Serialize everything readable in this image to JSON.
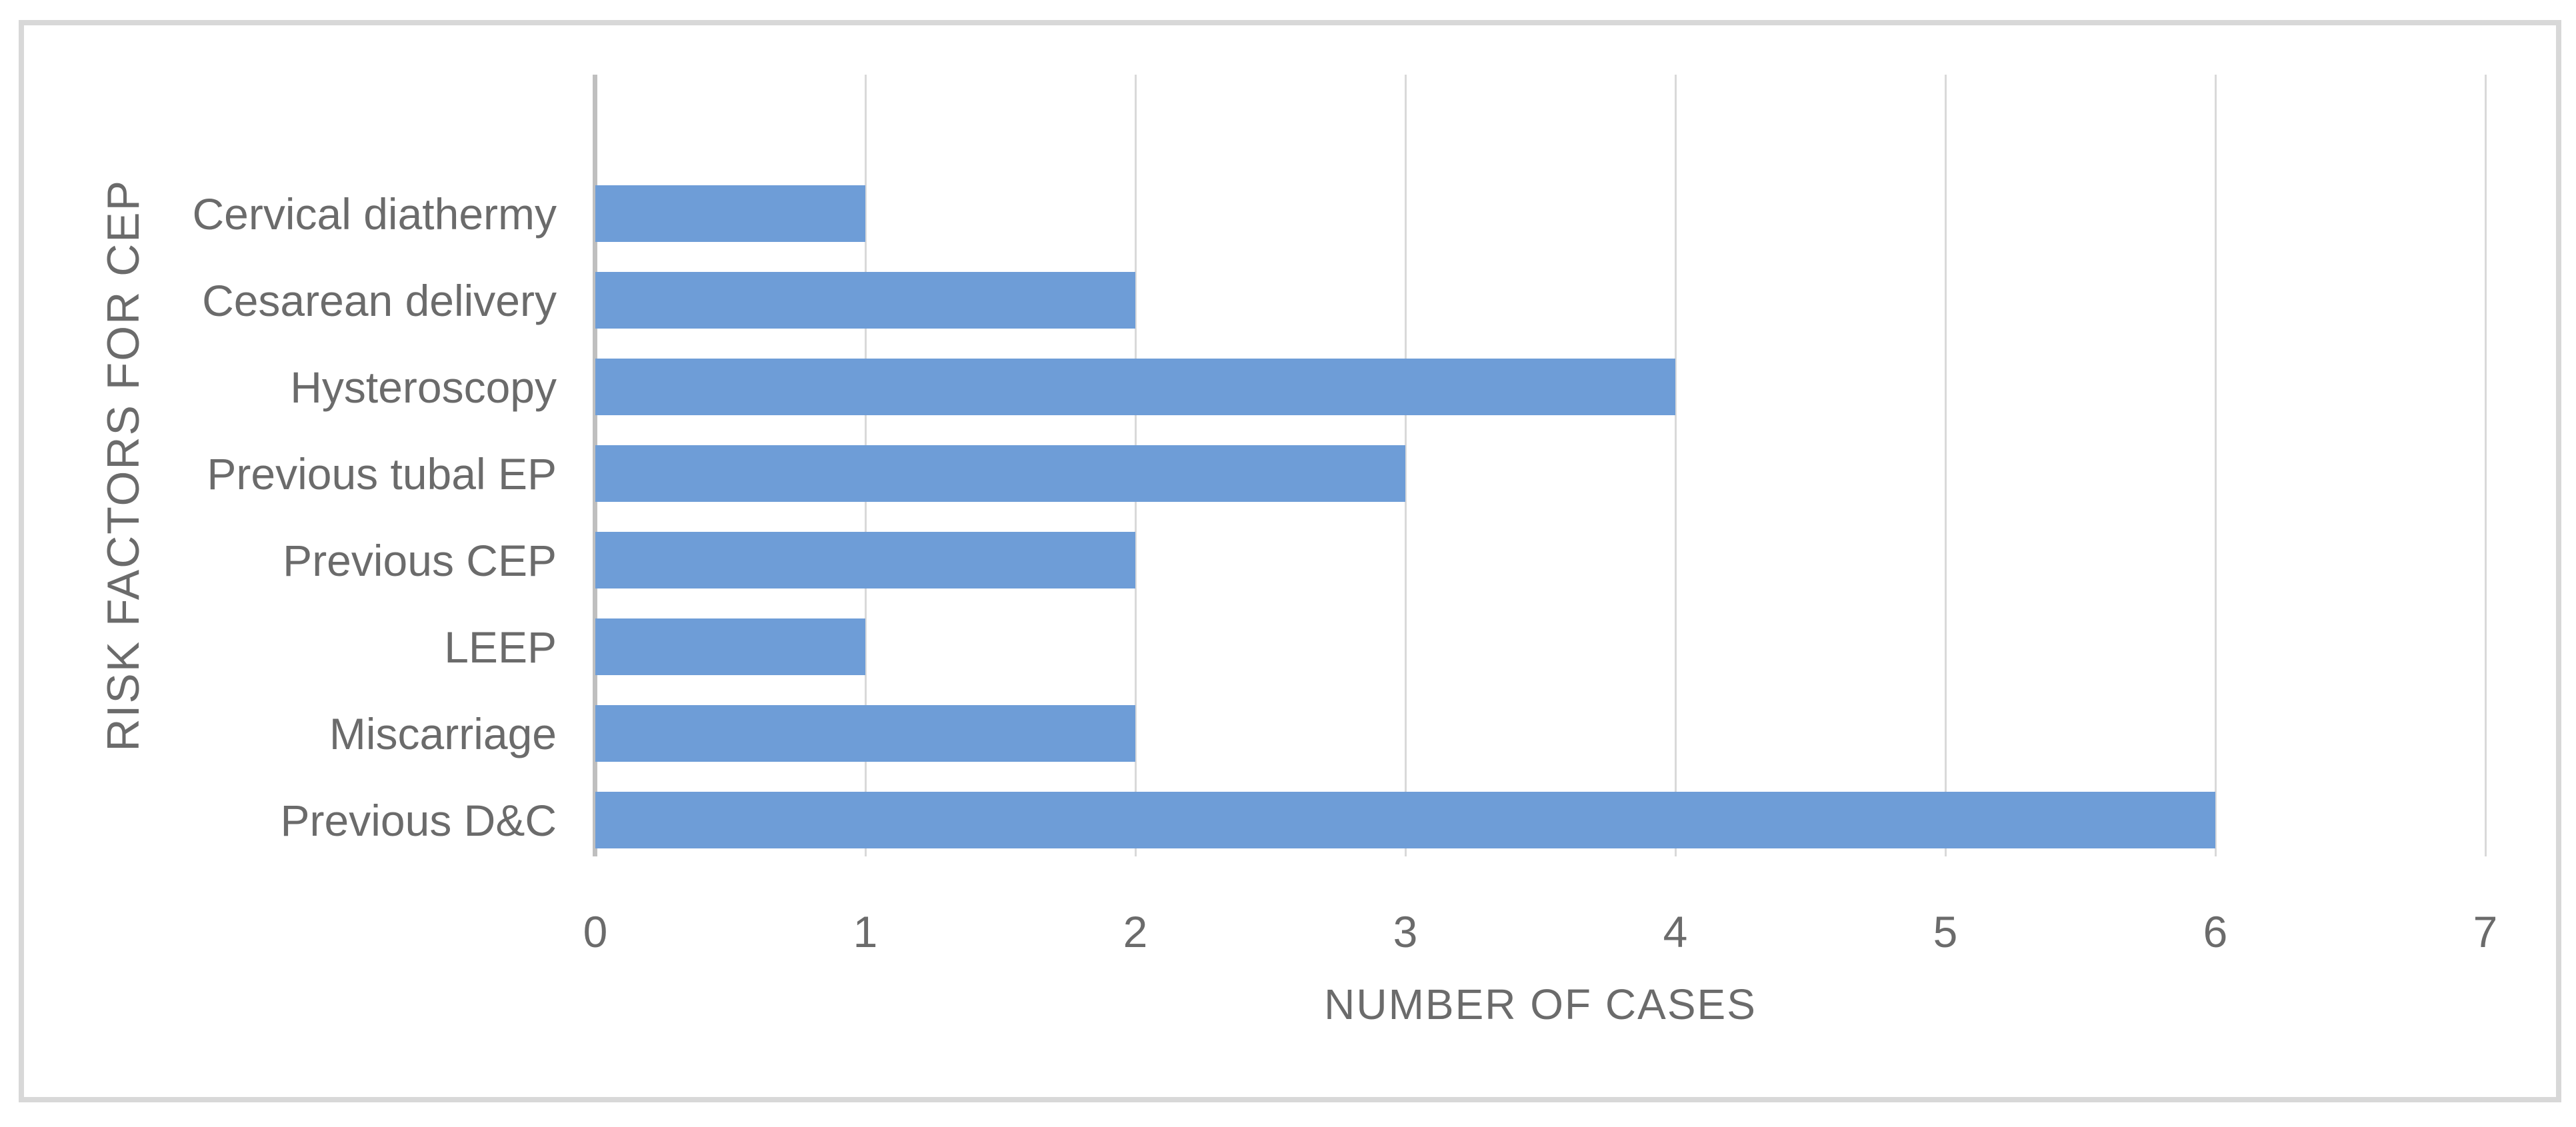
{
  "chart_data": {
    "type": "bar",
    "orientation": "horizontal",
    "categories": [
      "Cervical diathermy",
      "Cesarean delivery",
      "Hysteroscopy",
      "Previous tubal EP",
      "Previous CEP",
      "LEEP",
      "Miscarriage",
      "Previous D&C"
    ],
    "values": [
      1,
      2,
      4,
      3,
      2,
      1,
      2,
      6
    ],
    "xlabel": "NUMBER OF CASES",
    "ylabel": "RISK FACTORS FOR CEP",
    "xlim": [
      0,
      7
    ],
    "xticks": [
      0,
      1,
      2,
      3,
      4,
      5,
      6,
      7
    ],
    "grid": true,
    "legend": "none",
    "colors": {
      "bar_fill": "#6e9dd7",
      "gridline": "#d9d9d9",
      "axis_line": "#bfbfbf",
      "label_text": "#6b6b6b",
      "frame_border": "#d8d8d8",
      "background": "#ffffff"
    }
  }
}
